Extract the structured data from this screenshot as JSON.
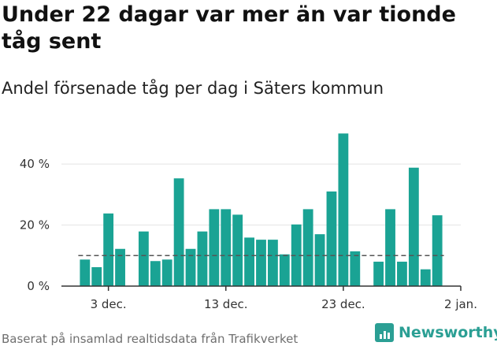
{
  "header": {
    "title": "Under 22 dagar var mer än var tionde tåg sent",
    "subtitle": "Andel försenade tåg per dag i Säters kommun"
  },
  "footer": {
    "source": "Baserat på insamlad realtidsdata från Trafikverket",
    "brand": "Newsworthy"
  },
  "chart_data": {
    "type": "bar",
    "title": "Under 22 dagar var mer än var tionde tåg sent",
    "subtitle": "Andel försenade tåg per dag i Säters kommun",
    "xlabel": "",
    "ylabel": "",
    "ylim": [
      0,
      55
    ],
    "yticks": [
      {
        "value": 0,
        "label": "0 %"
      },
      {
        "value": 20,
        "label": "20 %"
      },
      {
        "value": 40,
        "label": "40 %"
      }
    ],
    "xticks": [
      {
        "date": "2023-12-03",
        "label": "3 dec."
      },
      {
        "date": "2023-12-13",
        "label": "13 dec."
      },
      {
        "date": "2023-12-23",
        "label": "23 dec."
      },
      {
        "date": "2024-01-02",
        "label": "2 jan."
      }
    ],
    "x_range": [
      "2023-11-29",
      "2024-01-02"
    ],
    "grid": true,
    "reference_line": {
      "value": 10,
      "style": "dashed"
    },
    "bar_color": "#1aa394",
    "categories": [
      "2023-12-01",
      "2023-12-02",
      "2023-12-03",
      "2023-12-04",
      "2023-12-05",
      "2023-12-06",
      "2023-12-07",
      "2023-12-08",
      "2023-12-09",
      "2023-12-10",
      "2023-12-11",
      "2023-12-12",
      "2023-12-13",
      "2023-12-14",
      "2023-12-15",
      "2023-12-16",
      "2023-12-17",
      "2023-12-18",
      "2023-12-19",
      "2023-12-20",
      "2023-12-21",
      "2023-12-22",
      "2023-12-23",
      "2023-12-24",
      "2023-12-25",
      "2023-12-26",
      "2023-12-27",
      "2023-12-28",
      "2023-12-29",
      "2023-12-30",
      "2023-12-31"
    ],
    "values": [
      8.7,
      6.2,
      23.8,
      12.2,
      null,
      17.9,
      8.2,
      8.7,
      35.3,
      12.2,
      17.9,
      25.2,
      25.2,
      23.4,
      15.9,
      15.2,
      15.2,
      10.4,
      20.2,
      25.2,
      17.0,
      31.0,
      50.0,
      11.4,
      null,
      8.0,
      25.2,
      8.0,
      38.8,
      5.5,
      23.2
    ]
  }
}
